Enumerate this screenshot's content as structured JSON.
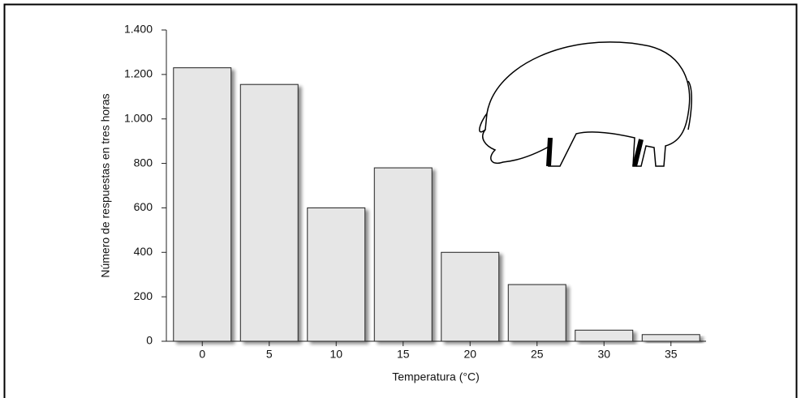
{
  "chart_data": {
    "type": "bar",
    "categories": [
      "0",
      "5",
      "10",
      "15",
      "20",
      "25",
      "30",
      "35"
    ],
    "values": [
      1230,
      1155,
      600,
      780,
      400,
      255,
      50,
      30
    ],
    "color": "#e6e6e6",
    "x_label": "Temperatura (°C)",
    "y_label": "Número de respuestas en tres horas",
    "ylim": [
      0,
      1400
    ],
    "yticks": [
      0,
      200,
      400,
      600,
      800,
      {
        "value": 1000,
        "label": "1.000"
      },
      {
        "value": 1200,
        "label": "1.200"
      },
      {
        "value": 1400,
        "label": "1.400"
      }
    ],
    "grid": false
  }
}
